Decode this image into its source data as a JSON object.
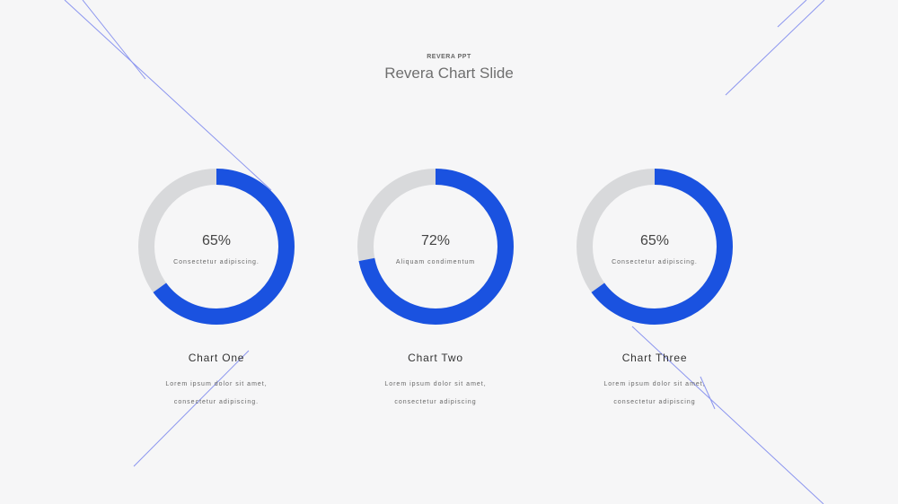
{
  "header": {
    "kicker": "REVERA PPT",
    "title": "Revera Chart Slide"
  },
  "colors": {
    "accent": "#1a52e0",
    "track": "#d8d9db",
    "deco_line": "#8b95ef",
    "background": "#f6f6f7"
  },
  "chart_data": [
    {
      "type": "pie",
      "title": "Chart One",
      "values": [
        65,
        35
      ],
      "value_label": "65%",
      "caption": "Consectetur adipiscing.",
      "description": [
        "Lorem ipsum dolor sit amet,",
        "consectetur adipiscing."
      ]
    },
    {
      "type": "pie",
      "title": "Chart Two",
      "values": [
        72,
        28
      ],
      "value_label": "72%",
      "caption": "Aliquam condimentum",
      "description": [
        "Lorem ipsum dolor sit amet,",
        "consectetur adipiscing"
      ]
    },
    {
      "type": "pie",
      "title": "Chart Three",
      "values": [
        65,
        35
      ],
      "value_label": "65%",
      "caption": "Consectetur adipiscing.",
      "description": [
        "Lorem ipsum dolor sit amet,",
        "consectetur adipiscing"
      ]
    }
  ]
}
